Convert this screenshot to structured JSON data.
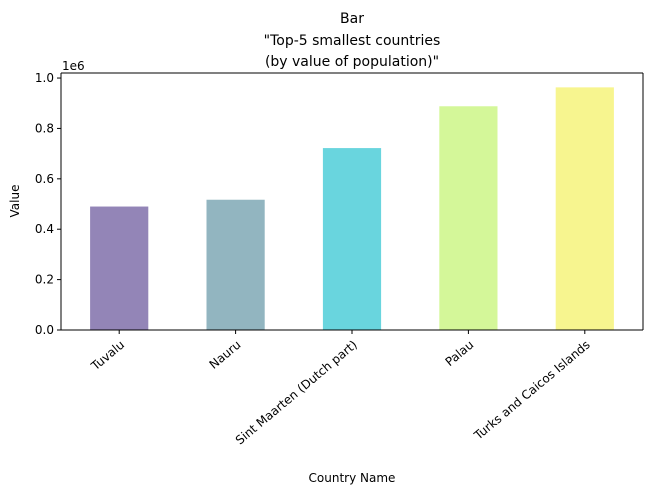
{
  "chart_data": {
    "type": "bar",
    "title_lines": [
      "Bar",
      "\"Top-5 smallest countries",
      "(by value of population)\""
    ],
    "xlabel": "Country Name",
    "ylabel": "Value",
    "y_offset_text": "1e6",
    "categories": [
      "Tuvalu",
      "Nauru",
      "Sint Maarten (Dutch part)",
      "Palau",
      "Turks and Caicos Islands"
    ],
    "values": [
      490000,
      517000,
      722000,
      888000,
      963000
    ],
    "colors": [
      "#9385b7",
      "#92b5c0",
      "#69d5de",
      "#d4f799",
      "#f7f58f"
    ],
    "ylim": [
      0,
      1020000
    ],
    "yticks": [
      0,
      200000,
      400000,
      600000,
      800000,
      1000000
    ],
    "ytick_labels": [
      "0.0",
      "0.2",
      "0.4",
      "0.6",
      "0.8",
      "1.0"
    ],
    "grid": false,
    "legend": "none"
  }
}
